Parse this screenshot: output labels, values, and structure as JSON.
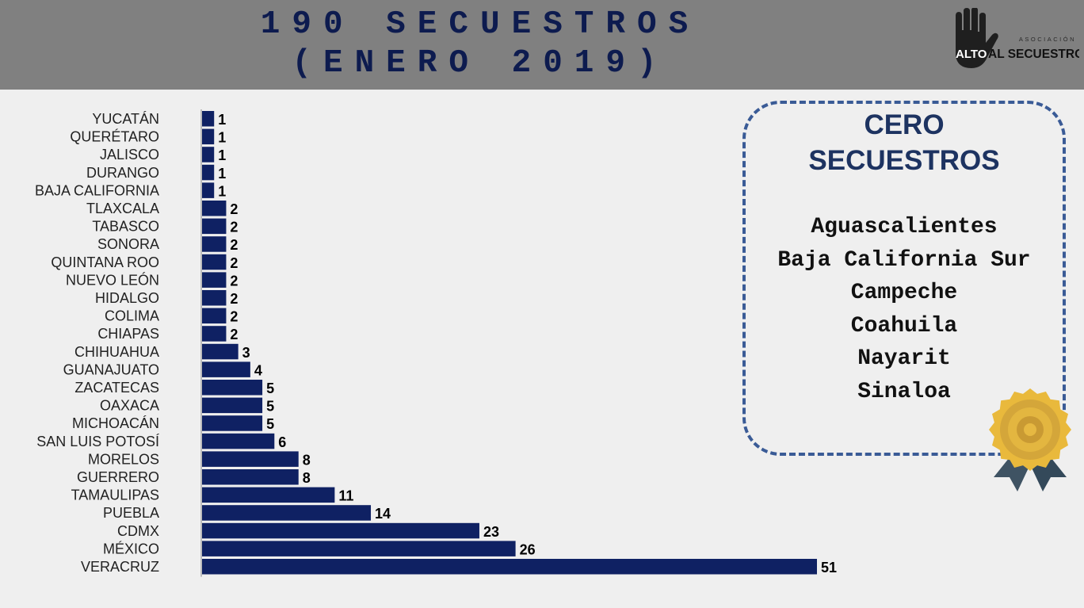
{
  "header": {
    "title_line1": "190 SECUESTROS",
    "title_line2": "(ENERO 2019)",
    "logo": {
      "word_alto": "ALTO",
      "word_rest": "AL SECUESTRO",
      "word_small": "ASOCIACIÓN",
      "icon": "raised-hand-icon"
    }
  },
  "chart_data": {
    "type": "bar",
    "orientation": "horizontal",
    "categories": [
      "YUCATÁN",
      "QUERÉTARO",
      "JALISCO",
      "DURANGO",
      "BAJA CALIFORNIA",
      "TLAXCALA",
      "TABASCO",
      "SONORA",
      "QUINTANA ROO",
      "NUEVO LEÓN",
      "HIDALGO",
      "COLIMA",
      "CHIAPAS",
      "CHIHUAHUA",
      "GUANAJUATO",
      "ZACATECAS",
      "OAXACA",
      "MICHOACÁN",
      "SAN LUIS POTOSÍ",
      "MORELOS",
      "GUERRERO",
      "TAMAULIPAS",
      "PUEBLA",
      "CDMX",
      "MÉXICO",
      "VERACRUZ"
    ],
    "values": [
      1,
      1,
      1,
      1,
      1,
      2,
      2,
      2,
      2,
      2,
      2,
      2,
      2,
      3,
      4,
      5,
      5,
      5,
      6,
      8,
      8,
      11,
      14,
      23,
      26,
      51
    ],
    "bar_color": "#0f2163",
    "xlim": [
      0,
      51
    ],
    "grid": false,
    "legend": "none",
    "data_labels": true
  },
  "zero_box": {
    "title_line1": "CERO",
    "title_line2": "SECUESTROS",
    "states": [
      "Aguascalientes",
      "Baja California Sur",
      "Campeche",
      "Coahuila",
      "Nayarit",
      "Sinaloa"
    ],
    "border_color": "#3a5b96",
    "badge_icon": "award-ribbon-icon"
  }
}
